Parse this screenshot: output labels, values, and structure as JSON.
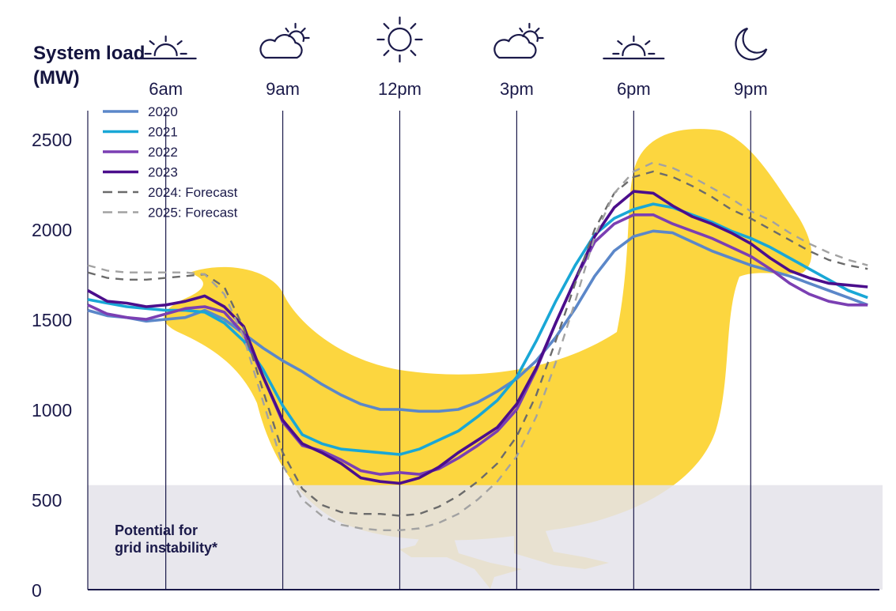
{
  "chart_data": {
    "type": "line",
    "ylabel": "System load\n(MW)",
    "ylim": [
      0,
      2600
    ],
    "yticks": [
      0,
      500,
      1000,
      1500,
      2000,
      2500
    ],
    "xlim": [
      4,
      24.3
    ],
    "time_markers": [
      {
        "hour": 6,
        "label": "6am",
        "icon": "sunrise-icon"
      },
      {
        "hour": 9,
        "label": "9am",
        "icon": "cloud-sun-icon"
      },
      {
        "hour": 12,
        "label": "12pm",
        "icon": "sun-icon"
      },
      {
        "hour": 15,
        "label": "3pm",
        "icon": "cloud-sun-icon"
      },
      {
        "hour": 18,
        "label": "6pm",
        "icon": "sunset-icon"
      },
      {
        "hour": 21,
        "label": "9pm",
        "icon": "moon-icon"
      }
    ],
    "shaded_region": {
      "label": "Potential for\ngrid instability*",
      "y_range": [
        0,
        580
      ],
      "color": "#e4e3ea"
    },
    "background_shape": {
      "name": "duck-silhouette",
      "color": "#fcd22f"
    },
    "x": [
      4,
      4.5,
      5,
      5.5,
      6,
      6.5,
      7,
      7.5,
      8,
      8.5,
      9,
      9.5,
      10,
      10.5,
      11,
      11.5,
      12,
      12.5,
      13,
      13.5,
      14,
      14.5,
      15,
      15.5,
      16,
      16.5,
      17,
      17.5,
      18,
      18.5,
      19,
      19.5,
      20,
      20.5,
      21,
      21.5,
      22,
      22.5,
      23,
      23.5,
      24
    ],
    "series": [
      {
        "name": "2020",
        "color": "#5b87c9",
        "dash": "solid",
        "values": [
          1550,
          1520,
          1510,
          1490,
          1500,
          1510,
          1550,
          1500,
          1420,
          1340,
          1270,
          1210,
          1140,
          1080,
          1030,
          1000,
          1000,
          990,
          990,
          1000,
          1040,
          1100,
          1170,
          1270,
          1400,
          1560,
          1740,
          1880,
          1960,
          1990,
          1980,
          1930,
          1880,
          1840,
          1800,
          1770,
          1740,
          1700,
          1660,
          1620,
          1580
        ]
      },
      {
        "name": "2021",
        "color": "#19a7d6",
        "dash": "solid",
        "values": [
          1610,
          1590,
          1570,
          1560,
          1550,
          1550,
          1540,
          1480,
          1380,
          1220,
          1020,
          860,
          810,
          780,
          770,
          760,
          750,
          780,
          830,
          880,
          960,
          1050,
          1180,
          1380,
          1600,
          1800,
          1970,
          2060,
          2110,
          2140,
          2120,
          2080,
          2040,
          1990,
          1950,
          1900,
          1840,
          1780,
          1720,
          1660,
          1620
        ]
      },
      {
        "name": "2022",
        "color": "#7b3fb3",
        "dash": "solid",
        "values": [
          1580,
          1530,
          1510,
          1500,
          1530,
          1560,
          1570,
          1540,
          1420,
          1180,
          930,
          800,
          770,
          720,
          660,
          640,
          650,
          640,
          670,
          730,
          800,
          880,
          1000,
          1220,
          1480,
          1720,
          1930,
          2030,
          2080,
          2080,
          2030,
          1990,
          1950,
          1900,
          1850,
          1780,
          1700,
          1640,
          1600,
          1580,
          1580
        ]
      },
      {
        "name": "2023",
        "color": "#4b0e8c",
        "dash": "solid",
        "values": [
          1660,
          1600,
          1590,
          1570,
          1580,
          1600,
          1630,
          1570,
          1460,
          1180,
          940,
          810,
          760,
          700,
          620,
          600,
          590,
          620,
          680,
          760,
          830,
          900,
          1030,
          1230,
          1480,
          1720,
          1960,
          2120,
          2210,
          2200,
          2130,
          2070,
          2030,
          1980,
          1920,
          1840,
          1770,
          1730,
          1700,
          1690,
          1680
        ]
      },
      {
        "name": "2024: Forecast",
        "color": "#6b6b6b",
        "dash": "10,8",
        "values": [
          1760,
          1730,
          1720,
          1720,
          1730,
          1740,
          1750,
          1680,
          1450,
          1100,
          760,
          560,
          470,
          430,
          420,
          420,
          410,
          420,
          460,
          520,
          600,
          700,
          850,
          1080,
          1380,
          1700,
          2000,
          2200,
          2290,
          2320,
          2290,
          2240,
          2180,
          2110,
          2060,
          2000,
          1940,
          1880,
          1830,
          1800,
          1780
        ]
      },
      {
        "name": "2025: Forecast",
        "color": "#a2a2a2",
        "dash": "10,8",
        "values": [
          1800,
          1770,
          1760,
          1760,
          1760,
          1760,
          1750,
          1640,
          1400,
          1040,
          690,
          500,
          410,
          360,
          340,
          330,
          330,
          340,
          370,
          420,
          500,
          600,
          740,
          960,
          1260,
          1600,
          1960,
          2200,
          2320,
          2370,
          2340,
          2290,
          2230,
          2170,
          2100,
          2050,
          1980,
          1920,
          1870,
          1830,
          1800
        ]
      }
    ]
  }
}
